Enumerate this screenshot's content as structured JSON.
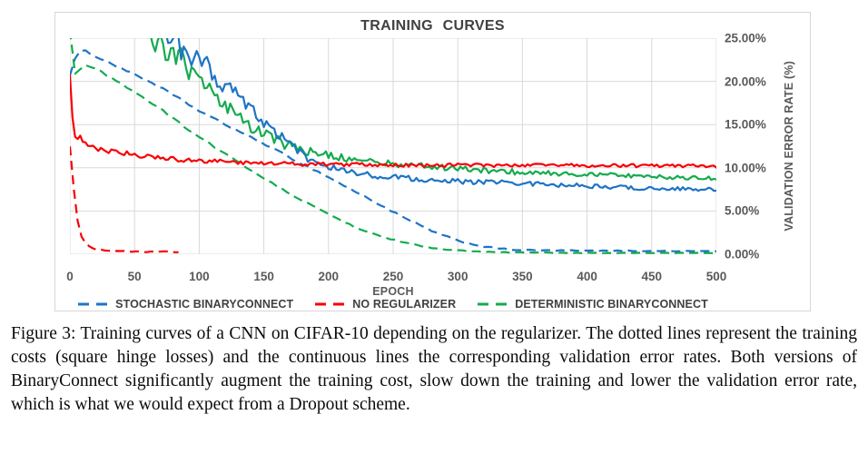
{
  "figure": {
    "caption": "Figure 3: Training curves of a CNN on CIFAR-10 depending on the regularizer. The dotted lines represent the training costs (square hinge losses) and the continuous lines the corresponding validation error rates. Both versions of BinaryConnect significantly augment the training cost, slow down the training and lower the validation error rate, which is what we would expect from a Dropout scheme."
  },
  "chart_data": {
    "type": "line",
    "title": "TRAINING CURVES",
    "xlabel": "EPOCH",
    "ylabel": "VALIDATION ERROR RATE (%)",
    "xlim": [
      0,
      500
    ],
    "ylim": [
      0,
      25
    ],
    "grid": true,
    "legend_position": "bottom",
    "x_ticks": [
      0,
      50,
      100,
      150,
      200,
      250,
      300,
      350,
      400,
      450,
      500
    ],
    "y_ticks": [
      [
        0,
        "0.00%"
      ],
      [
        5,
        "5.00%"
      ],
      [
        10,
        "10.00%"
      ],
      [
        15,
        "15.00%"
      ],
      [
        20,
        "20.00%"
      ],
      [
        25,
        "25.00%"
      ]
    ],
    "colors": {
      "blue": "#1E74C6",
      "red": "#F80004",
      "green": "#14AB4D",
      "grid": "#D9D9D9",
      "axis_text": "#595959",
      "title_text": "#404040",
      "border": "#D6D6D6"
    },
    "legend": [
      {
        "label": "STOCHASTIC BINARYCONNECT",
        "color": "#1E74C6",
        "style": "dashed"
      },
      {
        "label": "NO REGULARIZER",
        "color": "#F80004",
        "style": "dashed"
      },
      {
        "label": "DETERMINISTIC BINARYCONNECT",
        "color": "#14AB4D",
        "style": "dashed"
      }
    ],
    "series": [
      {
        "id": "stochastic-binaryconnect-training-cost",
        "group": "STOCHASTIC BINARYCONNECT",
        "kind": "training cost (square hinge loss)",
        "style": "dashed",
        "color": "#1E74C6",
        "step": 4,
        "points": [
          [
            0,
            20.8
          ],
          [
            4,
            22.6
          ],
          [
            9,
            23.6
          ],
          [
            14,
            23.4
          ],
          [
            20,
            22.9
          ],
          [
            30,
            22.2
          ],
          [
            40,
            21.5
          ],
          [
            50,
            20.8
          ],
          [
            60,
            20.1
          ],
          [
            70,
            19.3
          ],
          [
            80,
            18.4
          ],
          [
            90,
            17.5
          ],
          [
            100,
            16.6
          ],
          [
            110,
            15.8
          ],
          [
            120,
            15.0
          ],
          [
            130,
            14.3
          ],
          [
            140,
            13.5
          ],
          [
            150,
            12.8
          ],
          [
            160,
            12.0
          ],
          [
            170,
            11.2
          ],
          [
            180,
            10.4
          ],
          [
            190,
            9.7
          ],
          [
            200,
            8.9
          ],
          [
            210,
            8.1
          ],
          [
            220,
            7.3
          ],
          [
            230,
            6.5
          ],
          [
            240,
            5.7
          ],
          [
            250,
            4.9
          ],
          [
            260,
            4.1
          ],
          [
            270,
            3.4
          ],
          [
            280,
            2.7
          ],
          [
            290,
            2.1
          ],
          [
            300,
            1.6
          ],
          [
            310,
            1.2
          ],
          [
            320,
            0.9
          ],
          [
            330,
            0.7
          ],
          [
            340,
            0.55
          ],
          [
            360,
            0.45
          ],
          [
            400,
            0.4
          ],
          [
            450,
            0.38
          ],
          [
            500,
            0.36
          ]
        ],
        "noise": [
          [
            0,
            0.12
          ],
          [
            300,
            0.08
          ],
          [
            500,
            0.03
          ]
        ]
      },
      {
        "id": "deterministic-binaryconnect-training-cost",
        "group": "DETERMINISTIC BINARYCONNECT",
        "kind": "training cost (square hinge loss)",
        "style": "dashed",
        "color": "#14AB4D",
        "step": 4,
        "points": [
          [
            0,
            25.8
          ],
          [
            2,
            21.2
          ],
          [
            5,
            20.6
          ],
          [
            9,
            21.6
          ],
          [
            13,
            22.0
          ],
          [
            20,
            21.4
          ],
          [
            30,
            20.6
          ],
          [
            40,
            19.7
          ],
          [
            50,
            18.8
          ],
          [
            60,
            17.8
          ],
          [
            70,
            16.8
          ],
          [
            80,
            15.7
          ],
          [
            90,
            14.6
          ],
          [
            100,
            13.6
          ],
          [
            110,
            12.6
          ],
          [
            120,
            11.6
          ],
          [
            130,
            10.7
          ],
          [
            140,
            9.7
          ],
          [
            150,
            8.8
          ],
          [
            160,
            7.9
          ],
          [
            170,
            7.0
          ],
          [
            180,
            6.2
          ],
          [
            190,
            5.4
          ],
          [
            200,
            4.6
          ],
          [
            210,
            3.9
          ],
          [
            220,
            3.2
          ],
          [
            230,
            2.6
          ],
          [
            240,
            2.1
          ],
          [
            250,
            1.7
          ],
          [
            260,
            1.3
          ],
          [
            270,
            1.0
          ],
          [
            280,
            0.75
          ],
          [
            290,
            0.55
          ],
          [
            300,
            0.42
          ],
          [
            310,
            0.33
          ],
          [
            320,
            0.27
          ],
          [
            340,
            0.22
          ],
          [
            370,
            0.18
          ],
          [
            400,
            0.16
          ],
          [
            450,
            0.15
          ],
          [
            500,
            0.14
          ]
        ],
        "noise": [
          [
            0,
            0.12
          ],
          [
            300,
            0.06
          ],
          [
            500,
            0.03
          ]
        ]
      },
      {
        "id": "no-regularizer-training-cost",
        "group": "NO REGULARIZER",
        "kind": "training cost (square hinge loss)",
        "style": "dashed",
        "color": "#F80004",
        "step": 3,
        "points": [
          [
            0,
            12.5
          ],
          [
            2,
            9.0
          ],
          [
            4,
            6.0
          ],
          [
            6,
            3.8
          ],
          [
            8,
            2.4
          ],
          [
            10,
            1.6
          ],
          [
            13,
            1.1
          ],
          [
            16,
            0.8
          ],
          [
            20,
            0.6
          ],
          [
            25,
            0.45
          ],
          [
            30,
            0.4
          ],
          [
            40,
            0.32
          ],
          [
            50,
            0.3
          ],
          [
            60,
            0.28
          ],
          [
            70,
            0.3
          ],
          [
            78,
            0.25
          ],
          [
            85,
            0.28
          ]
        ],
        "noise": [
          [
            0,
            0.08
          ],
          [
            85,
            0.05
          ]
        ]
      },
      {
        "id": "deterministic-binaryconnect-validation-error",
        "group": "DETERMINISTIC BINARYCONNECT",
        "kind": "validation error rate",
        "style": "solid",
        "color": "#14AB4D",
        "step": 2,
        "points": [
          [
            62,
            26.5
          ],
          [
            66,
            24.0
          ],
          [
            70,
            25.5
          ],
          [
            74,
            23.0
          ],
          [
            78,
            24.0
          ],
          [
            82,
            22.2
          ],
          [
            86,
            23.0
          ],
          [
            90,
            21.5
          ],
          [
            95,
            20.8
          ],
          [
            100,
            20.0
          ],
          [
            105,
            19.3
          ],
          [
            110,
            18.6
          ],
          [
            115,
            18.0
          ],
          [
            120,
            17.3
          ],
          [
            125,
            16.6
          ],
          [
            130,
            16.0
          ],
          [
            135,
            15.4
          ],
          [
            140,
            14.9
          ],
          [
            145,
            14.4
          ],
          [
            150,
            14.0
          ],
          [
            155,
            13.6
          ],
          [
            160,
            13.2
          ],
          [
            165,
            12.9
          ],
          [
            170,
            12.6
          ],
          [
            175,
            12.3
          ],
          [
            180,
            12.1
          ],
          [
            185,
            11.9
          ],
          [
            190,
            11.7
          ],
          [
            195,
            11.5
          ],
          [
            200,
            11.4
          ],
          [
            210,
            11.2
          ],
          [
            220,
            11.0
          ],
          [
            230,
            10.8
          ],
          [
            240,
            10.6
          ],
          [
            250,
            10.5
          ],
          [
            270,
            10.2
          ],
          [
            290,
            10.0
          ],
          [
            310,
            9.8
          ],
          [
            330,
            9.6
          ],
          [
            350,
            9.5
          ],
          [
            370,
            9.4
          ],
          [
            400,
            9.2
          ],
          [
            430,
            9.1
          ],
          [
            460,
            8.9
          ],
          [
            500,
            8.8
          ]
        ],
        "noise": [
          [
            62,
            1.1
          ],
          [
            160,
            0.7
          ],
          [
            210,
            0.4
          ],
          [
            500,
            0.22
          ]
        ]
      },
      {
        "id": "stochastic-binaryconnect-validation-error",
        "group": "STOCHASTIC BINARYCONNECT",
        "kind": "validation error rate",
        "style": "solid",
        "color": "#1E74C6",
        "step": 2,
        "points": [
          [
            74,
            26.5
          ],
          [
            78,
            24.5
          ],
          [
            82,
            25.8
          ],
          [
            86,
            23.5
          ],
          [
            90,
            24.5
          ],
          [
            94,
            22.5
          ],
          [
            98,
            23.5
          ],
          [
            102,
            21.8
          ],
          [
            106,
            22.5
          ],
          [
            110,
            21.0
          ],
          [
            115,
            20.0
          ],
          [
            120,
            19.2
          ],
          [
            125,
            19.8
          ],
          [
            130,
            18.3
          ],
          [
            135,
            17.6
          ],
          [
            140,
            17.0
          ],
          [
            145,
            16.2
          ],
          [
            150,
            15.4
          ],
          [
            155,
            14.7
          ],
          [
            160,
            14.0
          ],
          [
            165,
            13.3
          ],
          [
            170,
            12.6
          ],
          [
            175,
            12.0
          ],
          [
            180,
            11.5
          ],
          [
            185,
            11.0
          ],
          [
            190,
            10.7
          ],
          [
            195,
            10.4
          ],
          [
            200,
            10.2
          ],
          [
            210,
            9.8
          ],
          [
            220,
            9.5
          ],
          [
            230,
            9.2
          ],
          [
            240,
            9.0
          ],
          [
            250,
            8.9
          ],
          [
            270,
            8.7
          ],
          [
            290,
            8.5
          ],
          [
            310,
            8.4
          ],
          [
            330,
            8.3
          ],
          [
            350,
            8.2
          ],
          [
            370,
            8.1
          ],
          [
            400,
            7.9
          ],
          [
            430,
            7.7
          ],
          [
            460,
            7.6
          ],
          [
            500,
            7.5
          ]
        ],
        "noise": [
          [
            74,
            1.1
          ],
          [
            160,
            0.7
          ],
          [
            210,
            0.35
          ],
          [
            500,
            0.2
          ]
        ]
      },
      {
        "id": "no-regularizer-validation-error",
        "group": "NO REGULARIZER",
        "kind": "validation error rate",
        "style": "solid",
        "color": "#F80004",
        "step": 2,
        "points": [
          [
            0,
            21.0
          ],
          [
            1,
            18.0
          ],
          [
            2,
            16.0
          ],
          [
            3,
            14.5
          ],
          [
            5,
            13.2
          ],
          [
            8,
            13.6
          ],
          [
            10,
            12.8
          ],
          [
            12,
            13.1
          ],
          [
            15,
            12.4
          ],
          [
            18,
            12.6
          ],
          [
            22,
            12.0
          ],
          [
            26,
            12.3
          ],
          [
            30,
            11.8
          ],
          [
            35,
            12.0
          ],
          [
            40,
            11.6
          ],
          [
            45,
            11.8
          ],
          [
            50,
            11.5
          ],
          [
            60,
            11.3
          ],
          [
            70,
            11.1
          ],
          [
            80,
            11.0
          ],
          [
            90,
            10.9
          ],
          [
            100,
            10.8
          ],
          [
            120,
            10.7
          ],
          [
            140,
            10.6
          ],
          [
            160,
            10.5
          ],
          [
            180,
            10.4
          ],
          [
            200,
            10.4
          ],
          [
            250,
            10.3
          ],
          [
            300,
            10.3
          ],
          [
            350,
            10.3
          ],
          [
            400,
            10.25
          ],
          [
            450,
            10.25
          ],
          [
            500,
            10.2
          ]
        ],
        "noise": [
          [
            0,
            0.3
          ],
          [
            30,
            0.25
          ],
          [
            500,
            0.18
          ]
        ]
      }
    ]
  }
}
